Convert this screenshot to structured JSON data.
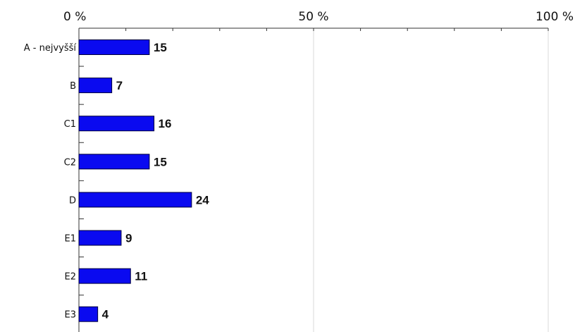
{
  "chart_data": {
    "type": "bar",
    "orientation": "horizontal",
    "categories": [
      "A - nejvyšší",
      "B",
      "C1",
      "C2",
      "D",
      "E1",
      "E2",
      "E3"
    ],
    "values": [
      15,
      7,
      16,
      15,
      24,
      9,
      11,
      4
    ],
    "value_labels": [
      "15",
      "7",
      "16",
      "15",
      "24",
      "9",
      "11",
      "4"
    ],
    "xlim": [
      0,
      100
    ],
    "x_tick_labels": [
      "0 %",
      "50 %",
      "100 %"
    ],
    "x_ticks": [
      0,
      50,
      100
    ],
    "x_axis_position": "top",
    "grid": true,
    "bar_color": "#0a0af0",
    "bar_edge_color": "#00003a",
    "grid_color": "#d8d8d8",
    "title": "",
    "xlabel": "",
    "ylabel": ""
  }
}
